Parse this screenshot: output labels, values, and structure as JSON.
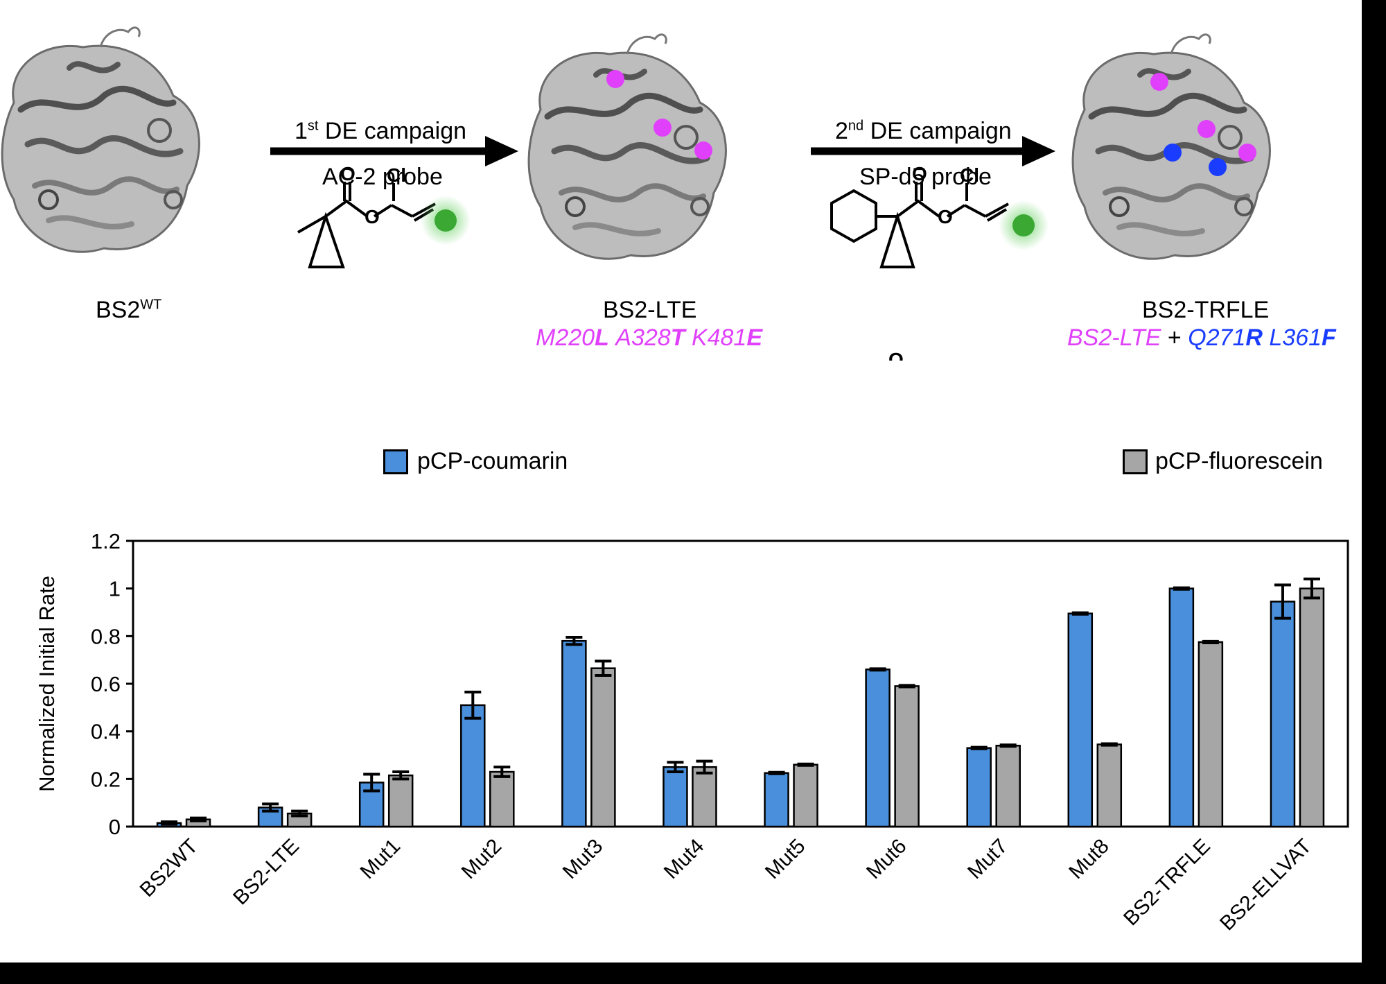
{
  "scheme": {
    "proteins": [
      {
        "name": "BS2",
        "name_sup": "WT",
        "mutations": null
      },
      {
        "name": "BS2-LTE",
        "mutations": [
          {
            "pre": "M220",
            "mut": "L"
          },
          {
            "pre": "A328",
            "mut": "T"
          },
          {
            "pre": "K481",
            "mut": "E"
          }
        ]
      },
      {
        "name": "BS2-TRFLE",
        "parent": "BS2-LTE",
        "plus": "+",
        "mutations": [
          {
            "pre": "Q271",
            "mut": "R"
          },
          {
            "pre": "L361",
            "mut": "F"
          }
        ]
      }
    ],
    "arrows": [
      {
        "campaign_num": "1",
        "campaign_sup": "st",
        "campaign_text": " DE campaign",
        "probe": "AC-2 probe"
      },
      {
        "campaign_num": "2",
        "campaign_sup": "nd",
        "campaign_text": " DE campaign",
        "probe": "SP-d5 probe"
      }
    ],
    "atom_labels": {
      "oxygen": "O",
      "chlorine": "Cl"
    },
    "colors": {
      "first_round_sites": "#e040fb",
      "second_round_sites": "#1a3cff",
      "fluorophore": "#3aa832"
    }
  },
  "legend": [
    {
      "label": "pCP-coumarin",
      "color": "#4a8fdc"
    },
    {
      "label": "pCP-fluorescein",
      "color": "#a6a6a6"
    }
  ],
  "chart_data": {
    "type": "bar",
    "ylabel": "Normalized Initial Rate",
    "xlabel": "",
    "ylim": [
      0,
      1.2
    ],
    "yticks": [
      "0",
      "0.2",
      "0.4",
      "0.6",
      "0.8",
      "1",
      "1.2"
    ],
    "categories": [
      "BS2WT",
      "BS2-LTE",
      "Mut1",
      "Mut2",
      "Mut3",
      "Mut4",
      "Mut5",
      "Mut6",
      "Mut7",
      "Mut8",
      "BS2-TRFLE",
      "BS2-ELLVAT"
    ],
    "series": [
      {
        "name": "pCP-coumarin",
        "color": "#4a8fdc",
        "values": [
          0.015,
          0.08,
          0.185,
          0.51,
          0.78,
          0.25,
          0.225,
          0.66,
          0.33,
          0.895,
          1.0,
          0.945
        ],
        "errors": [
          0.005,
          0.015,
          0.035,
          0.055,
          0.015,
          0.02,
          0.003,
          0.003,
          0.003,
          0.003,
          0.003,
          0.07
        ]
      },
      {
        "name": "pCP-fluorescein",
        "color": "#a6a6a6",
        "values": [
          0.03,
          0.055,
          0.215,
          0.23,
          0.665,
          0.25,
          0.26,
          0.59,
          0.34,
          0.345,
          0.775,
          1.0
        ],
        "errors": [
          0.006,
          0.01,
          0.015,
          0.02,
          0.03,
          0.025,
          0.003,
          0.003,
          0.003,
          0.003,
          0.003,
          0.04
        ]
      }
    ],
    "grid": false,
    "legend_position": "top"
  }
}
